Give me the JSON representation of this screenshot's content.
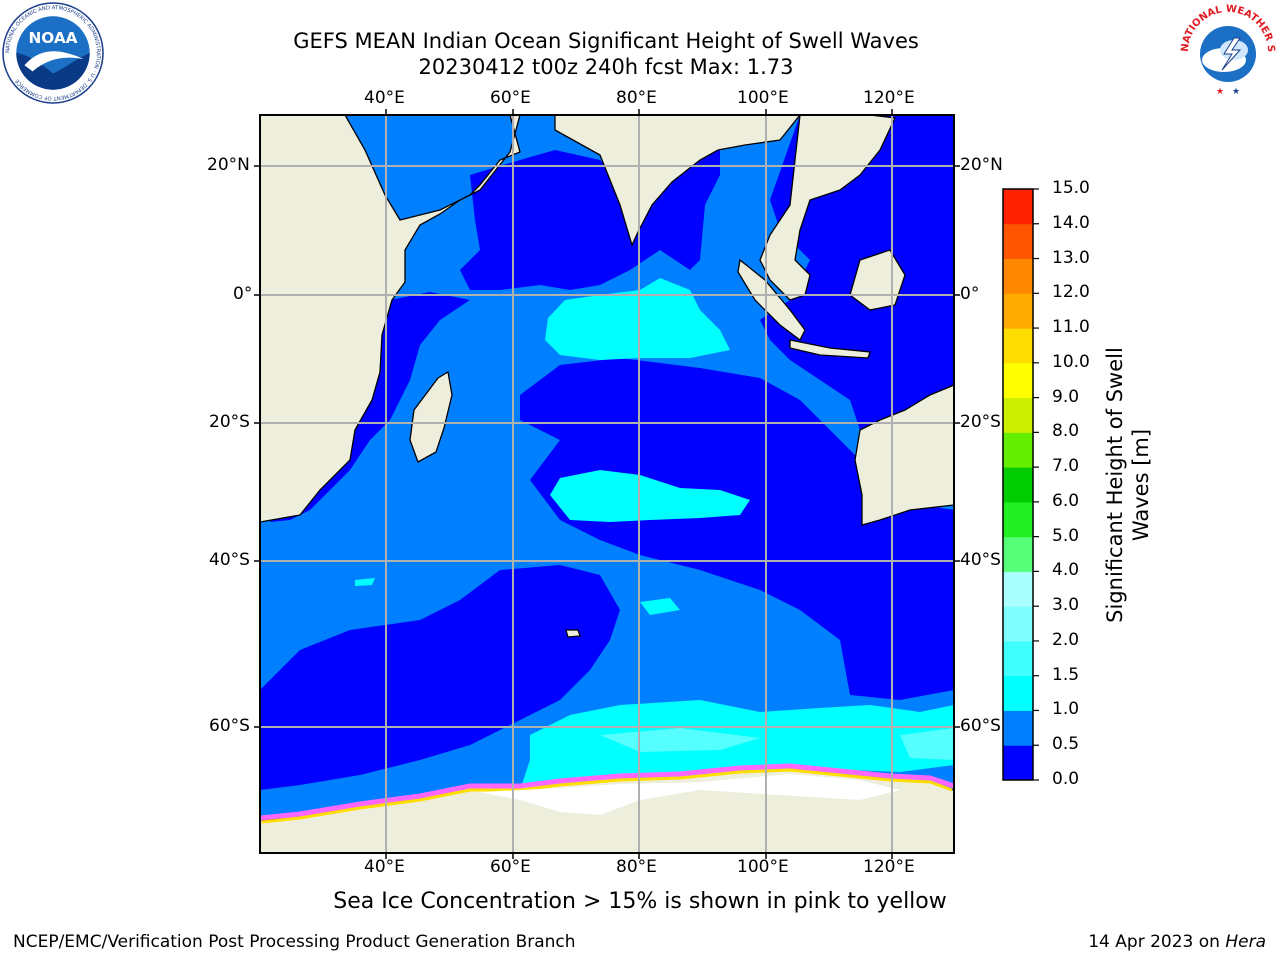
{
  "header": {
    "title_line1": "GEFS MEAN Indian Ocean Significant Height of Swell Waves",
    "title_line2": "20230412 t00z 240h fcst   Max: 1.73"
  },
  "logos": {
    "noaa": {
      "icon": "noaa-logo",
      "text": "NOAA",
      "ring_text": "NATIONAL OCEANIC AND ATMOSPHERIC ADMINISTRATION · U.S. DEPARTMENT OF COMMERCE"
    },
    "nws": {
      "icon": "nws-logo",
      "ring_text": "NATIONAL WEATHER SERVICE"
    }
  },
  "map": {
    "lon_labels_top": [
      "40°E",
      "60°E",
      "80°E",
      "100°E",
      "120°E"
    ],
    "lon_labels_bottom": [
      "40°E",
      "60°E",
      "80°E",
      "100°E",
      "120°E"
    ],
    "lat_labels_left": [
      "20°N",
      "0°",
      "20°S",
      "40°S",
      "60°S"
    ],
    "lat_labels_right": [
      "20°N",
      "0°",
      "20°S",
      "40°S",
      "60°S"
    ],
    "colors": {
      "land": "#eeeedd",
      "ocean_0_0.5": "#0000ff",
      "ocean_0.5_1.0": "#0080ff",
      "ocean_1.0_1.5": "#00ffff",
      "ocean_1.5_2.0": "#40ffff",
      "sea_ice_low": "#ff66ff",
      "sea_ice_high": "#ffff00",
      "grid": "#b0b0b0"
    }
  },
  "colorbar": {
    "title": "Significant Height of Swell Waves [m]",
    "tick_labels": [
      "0.0",
      "0.5",
      "1.0",
      "1.5",
      "2.0",
      "3.0",
      "4.0",
      "5.0",
      "6.0",
      "7.0",
      "8.0",
      "9.0",
      "10.0",
      "11.0",
      "12.0",
      "13.0",
      "14.0",
      "15.0"
    ],
    "band_colors": [
      "#0000ff",
      "#0080ff",
      "#00ffff",
      "#40ffff",
      "#80ffff",
      "#aaffff",
      "#55ff77",
      "#22ee22",
      "#00cc00",
      "#66ee00",
      "#ccee00",
      "#ffff00",
      "#ffdd00",
      "#ffaa00",
      "#ff8800",
      "#ff5500",
      "#ff2200"
    ]
  },
  "footer": {
    "note": "Sea Ice Concentration > 15% is shown in pink to yellow",
    "left": "NCEP/EMC/Verification Post Processing Product Generation Branch",
    "right_date": "14 Apr 2023 on",
    "right_machine": "Hera"
  }
}
